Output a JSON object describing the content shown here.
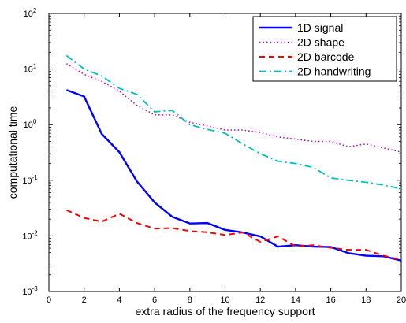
{
  "chart_data": {
    "type": "line",
    "xlabel": "extra radius of the frequency support",
    "ylabel": "computational time",
    "xlim": [
      0,
      20
    ],
    "ylim": [
      0.001,
      100
    ],
    "yscale": "log",
    "grid": false,
    "legend_position": "top-right",
    "x_ticks": [
      0,
      2,
      4,
      6,
      8,
      10,
      12,
      14,
      16,
      18,
      20
    ],
    "y_ticks": [
      {
        "value": 0.001,
        "base": "10",
        "exp": "-3"
      },
      {
        "value": 0.01,
        "base": "10",
        "exp": "-2"
      },
      {
        "value": 0.1,
        "base": "10",
        "exp": "-1"
      },
      {
        "value": 1,
        "base": "10",
        "exp": "0"
      },
      {
        "value": 10,
        "base": "10",
        "exp": "1"
      },
      {
        "value": 100,
        "base": "10",
        "exp": "2"
      }
    ],
    "x": [
      1,
      2,
      3,
      4,
      5,
      6,
      7,
      8,
      9,
      10,
      11,
      12,
      13,
      14,
      15,
      16,
      17,
      18,
      19,
      20
    ],
    "series": [
      {
        "name": "1D signal",
        "color": "#0000ff",
        "style": "solid",
        "values": [
          4.2,
          3.2,
          0.68,
          0.32,
          0.095,
          0.04,
          0.022,
          0.0167,
          0.017,
          0.0128,
          0.0115,
          0.0098,
          0.0064,
          0.0068,
          0.0064,
          0.0063,
          0.0049,
          0.0044,
          0.0043,
          0.0036
        ]
      },
      {
        "name": "2D shape",
        "color": "#bf00bf",
        "style": "dotted",
        "values": [
          12.5,
          8.0,
          6.0,
          4.0,
          2.2,
          1.5,
          1.5,
          1.1,
          0.95,
          0.8,
          0.8,
          0.72,
          0.6,
          0.55,
          0.5,
          0.5,
          0.4,
          0.45,
          0.38,
          0.32
        ]
      },
      {
        "name": "2D barcode",
        "color": "#ff0000",
        "style": "dashed",
        "values": [
          0.029,
          0.021,
          0.018,
          0.025,
          0.017,
          0.0135,
          0.0138,
          0.0122,
          0.0116,
          0.0104,
          0.0115,
          0.0078,
          0.0098,
          0.0065,
          0.0068,
          0.0061,
          0.0056,
          0.0056,
          0.0044,
          0.0037
        ]
      },
      {
        "name": "2D handwriting",
        "color": "#00bfbf",
        "style": "dashdot",
        "values": [
          17.5,
          10.0,
          7.5,
          4.5,
          3.5,
          1.7,
          1.8,
          1.0,
          0.82,
          0.7,
          0.45,
          0.3,
          0.22,
          0.2,
          0.17,
          0.11,
          0.1,
          0.092,
          0.082,
          0.07
        ]
      }
    ]
  }
}
